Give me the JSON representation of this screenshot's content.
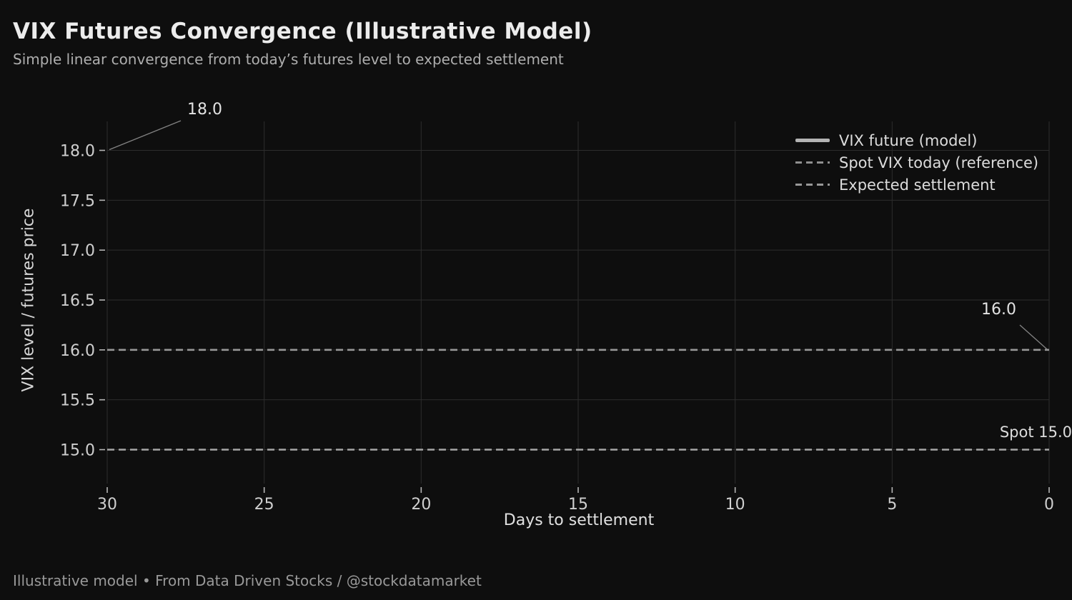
{
  "header": {
    "title": "VIX Futures Convergence (Illustrative Model)",
    "subtitle": "Simple linear convergence from today’s futures level to expected settlement"
  },
  "axes": {
    "xlabel": "Days to settlement",
    "ylabel": "VIX level / futures price"
  },
  "legend": {
    "items": [
      {
        "label": "VIX future (model)",
        "marker": "solid-line"
      },
      {
        "label": "Spot VIX today (reference)",
        "marker": "dashed-line"
      },
      {
        "label": "Expected settlement",
        "marker": "dashed-line"
      }
    ]
  },
  "annotations": {
    "future_start": "18.0",
    "future_end": "16.0",
    "spot": "Spot 15.0"
  },
  "footer": {
    "text": "Illustrative model • From Data Driven Stocks / @stockdatamarket"
  },
  "colors": {
    "background": "#0e0e0e",
    "grid": "#2d2d2d",
    "tick_mark": "#b5b5b5",
    "tick_label": "#cfcfcf",
    "solid_line": "#b3b3b3",
    "spot_dash": "#a6a6a6",
    "expected_dash": "#979797",
    "leader_line": "#828282",
    "title": "#ececec",
    "subtitle": "#aeaeae",
    "footer": "#999999"
  },
  "chart_data": {
    "type": "line",
    "title": "VIX Futures Convergence (Illustrative Model)",
    "subtitle": "Simple linear convergence from today’s futures level to expected settlement",
    "xlabel": "Days to settlement",
    "ylabel": "VIX level / futures price",
    "x_ticks": [
      30,
      25,
      20,
      15,
      10,
      5,
      0
    ],
    "y_ticks": [
      15.0,
      15.5,
      16.0,
      16.5,
      17.0,
      17.5,
      18.0
    ],
    "xlim": [
      30,
      0
    ],
    "ylim": [
      14.66,
      18.29
    ],
    "x_axis_reversed": true,
    "grid": true,
    "legend_position": "upper right",
    "series": [
      {
        "name": "VIX future (model)",
        "type": "line",
        "style": "solid",
        "x": [
          30,
          0
        ],
        "y": [
          18.0,
          16.0
        ],
        "visible_in_plot": false
      },
      {
        "name": "Spot VIX today (reference)",
        "type": "hline",
        "style": "dashed",
        "value": 15.0
      },
      {
        "name": "Expected settlement",
        "type": "hline",
        "style": "dashed",
        "value": 16.0
      }
    ],
    "annotations": [
      {
        "text": "18.0",
        "x": 30,
        "y": 18.0,
        "leader": true
      },
      {
        "text": "16.0",
        "x": 0,
        "y": 16.0,
        "leader": true
      },
      {
        "text": "Spot 15.0",
        "x": 0,
        "y": 15.0,
        "leader": false
      }
    ]
  }
}
